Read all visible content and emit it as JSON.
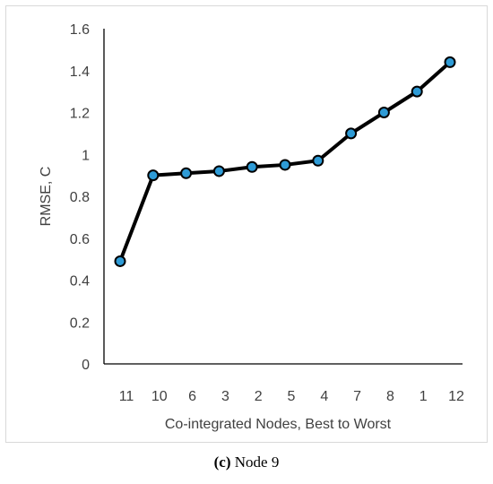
{
  "chart_data": {
    "type": "line",
    "categories": [
      "11",
      "10",
      "6",
      "3",
      "2",
      "5",
      "4",
      "7",
      "8",
      "1",
      "12"
    ],
    "values": [
      0.49,
      0.9,
      0.91,
      0.92,
      0.94,
      0.95,
      0.97,
      1.1,
      1.2,
      1.3,
      1.44
    ],
    "ylim": [
      0,
      1.6
    ],
    "yticks": [
      "0",
      "0.2",
      "0.4",
      "0.6",
      "0.8",
      "1",
      "1.2",
      "1.4",
      "1.6"
    ],
    "xlabel": "Co-integrated Nodes, Best to Worst",
    "ylabel": "RMSE, C",
    "grid": false,
    "line_color": "#000000",
    "marker_color": "#2e9bd6"
  },
  "caption": {
    "letter": "(c)",
    "text": " Node 9"
  }
}
